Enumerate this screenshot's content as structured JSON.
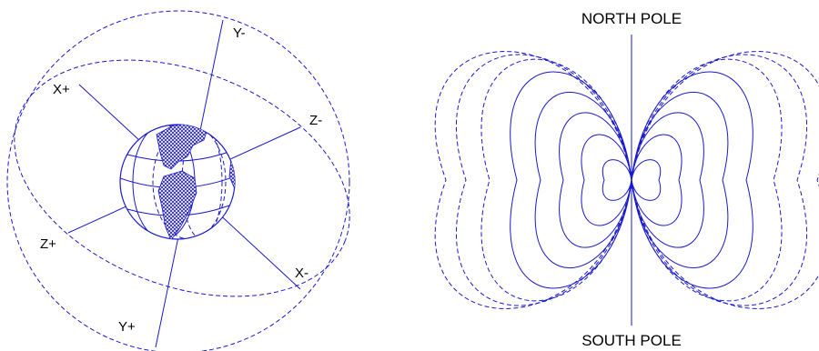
{
  "axis_labels": {
    "x_plus": "X+",
    "x_minus": "X-",
    "y_plus": "Y+",
    "y_minus": "Y-",
    "z_plus": "Z+",
    "z_minus": "Z-"
  },
  "poles": {
    "north": "NORTH POLE",
    "south": "SOUTH POLE"
  },
  "colors": {
    "line": "#1a1acc",
    "text": "#000000",
    "background": "#ffffff"
  }
}
